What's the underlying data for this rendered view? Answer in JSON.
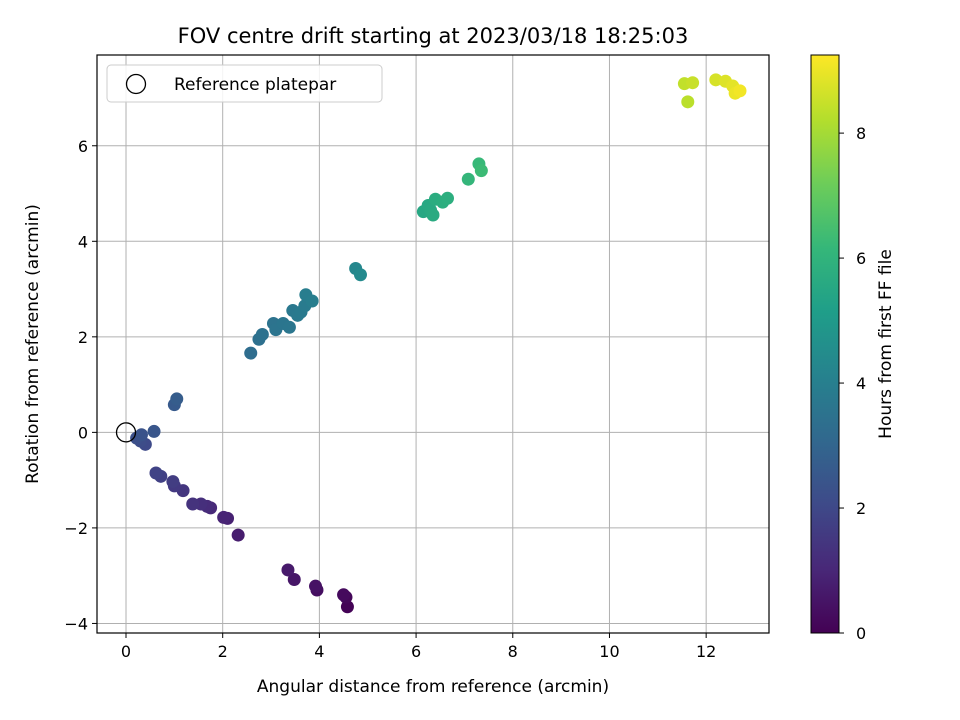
{
  "chart_data": {
    "type": "scatter",
    "title": "FOV centre drift starting at 2023/03/18 18:25:03",
    "xlabel": "Angular distance from reference (arcmin)",
    "ylabel": "Rotation from reference (arcmin)",
    "xlim": [
      -0.6,
      13.3
    ],
    "ylim": [
      -4.2,
      7.9
    ],
    "xticks": [
      0,
      2,
      4,
      6,
      8,
      10,
      12
    ],
    "yticks": [
      -4,
      -2,
      0,
      2,
      4,
      6
    ],
    "grid": true,
    "colorbar": {
      "label": "Hours from first FF file",
      "range": [
        0,
        9.25
      ],
      "ticks": [
        0,
        2,
        4,
        6,
        8
      ],
      "colormap": "viridis"
    },
    "legend": {
      "position": "top-left",
      "entries": [
        {
          "label": "Reference platepar",
          "marker": "open-circle"
        }
      ]
    },
    "reference_point": {
      "x": 0,
      "y": 0
    },
    "points": [
      {
        "x": 4.58,
        "y": -3.65,
        "hours": 0.05
      },
      {
        "x": 4.55,
        "y": -3.45,
        "hours": 0.15
      },
      {
        "x": 4.5,
        "y": -3.4,
        "hours": 0.25
      },
      {
        "x": 3.95,
        "y": -3.3,
        "hours": 0.35
      },
      {
        "x": 3.92,
        "y": -3.22,
        "hours": 0.45
      },
      {
        "x": 3.48,
        "y": -3.08,
        "hours": 0.55
      },
      {
        "x": 3.35,
        "y": -2.88,
        "hours": 0.65
      },
      {
        "x": 2.32,
        "y": -2.15,
        "hours": 0.75
      },
      {
        "x": 2.1,
        "y": -1.8,
        "hours": 0.85
      },
      {
        "x": 2.02,
        "y": -1.78,
        "hours": 0.95
      },
      {
        "x": 1.75,
        "y": -1.58,
        "hours": 1.05
      },
      {
        "x": 1.68,
        "y": -1.55,
        "hours": 1.15
      },
      {
        "x": 1.55,
        "y": -1.5,
        "hours": 1.25
      },
      {
        "x": 1.38,
        "y": -1.5,
        "hours": 1.35
      },
      {
        "x": 1.18,
        "y": -1.22,
        "hours": 1.45
      },
      {
        "x": 1.0,
        "y": -1.12,
        "hours": 1.55
      },
      {
        "x": 0.97,
        "y": -1.03,
        "hours": 1.65
      },
      {
        "x": 0.72,
        "y": -0.92,
        "hours": 1.75
      },
      {
        "x": 0.62,
        "y": -0.85,
        "hours": 1.85
      },
      {
        "x": 0.4,
        "y": -0.25,
        "hours": 2.05
      },
      {
        "x": 0.3,
        "y": -0.18,
        "hours": 2.15
      },
      {
        "x": 0.22,
        "y": -0.12,
        "hours": 2.25
      },
      {
        "x": 0.32,
        "y": -0.05,
        "hours": 2.35
      },
      {
        "x": 0.58,
        "y": 0.02,
        "hours": 2.45
      },
      {
        "x": 1.0,
        "y": 0.58,
        "hours": 2.6
      },
      {
        "x": 1.05,
        "y": 0.7,
        "hours": 2.7
      },
      {
        "x": 2.58,
        "y": 1.66,
        "hours": 3.3
      },
      {
        "x": 2.75,
        "y": 1.95,
        "hours": 3.4
      },
      {
        "x": 2.82,
        "y": 2.05,
        "hours": 3.45
      },
      {
        "x": 3.05,
        "y": 2.28,
        "hours": 3.5
      },
      {
        "x": 3.1,
        "y": 2.15,
        "hours": 3.55
      },
      {
        "x": 3.25,
        "y": 2.28,
        "hours": 3.6
      },
      {
        "x": 3.38,
        "y": 2.2,
        "hours": 3.65
      },
      {
        "x": 3.45,
        "y": 2.55,
        "hours": 3.7
      },
      {
        "x": 3.55,
        "y": 2.45,
        "hours": 3.75
      },
      {
        "x": 3.62,
        "y": 2.52,
        "hours": 3.8
      },
      {
        "x": 3.7,
        "y": 2.65,
        "hours": 3.85
      },
      {
        "x": 3.72,
        "y": 2.88,
        "hours": 3.9
      },
      {
        "x": 3.85,
        "y": 2.75,
        "hours": 3.95
      },
      {
        "x": 4.75,
        "y": 3.43,
        "hours": 4.3
      },
      {
        "x": 4.85,
        "y": 3.3,
        "hours": 4.4
      },
      {
        "x": 6.15,
        "y": 4.62,
        "hours": 5.5
      },
      {
        "x": 6.25,
        "y": 4.75,
        "hours": 5.55
      },
      {
        "x": 6.3,
        "y": 4.65,
        "hours": 5.6
      },
      {
        "x": 6.35,
        "y": 4.55,
        "hours": 5.65
      },
      {
        "x": 6.4,
        "y": 4.88,
        "hours": 5.7
      },
      {
        "x": 6.55,
        "y": 4.82,
        "hours": 5.75
      },
      {
        "x": 6.65,
        "y": 4.9,
        "hours": 5.8
      },
      {
        "x": 7.08,
        "y": 5.3,
        "hours": 6.1
      },
      {
        "x": 7.3,
        "y": 5.62,
        "hours": 6.2
      },
      {
        "x": 7.35,
        "y": 5.48,
        "hours": 6.3
      },
      {
        "x": 11.62,
        "y": 6.92,
        "hours": 8.3
      },
      {
        "x": 11.55,
        "y": 7.3,
        "hours": 8.4
      },
      {
        "x": 11.72,
        "y": 7.32,
        "hours": 8.5
      },
      {
        "x": 12.2,
        "y": 7.38,
        "hours": 8.7
      },
      {
        "x": 12.4,
        "y": 7.35,
        "hours": 8.8
      },
      {
        "x": 12.55,
        "y": 7.25,
        "hours": 8.9
      },
      {
        "x": 12.6,
        "y": 7.1,
        "hours": 9.0
      },
      {
        "x": 12.7,
        "y": 7.15,
        "hours": 9.1
      }
    ]
  }
}
